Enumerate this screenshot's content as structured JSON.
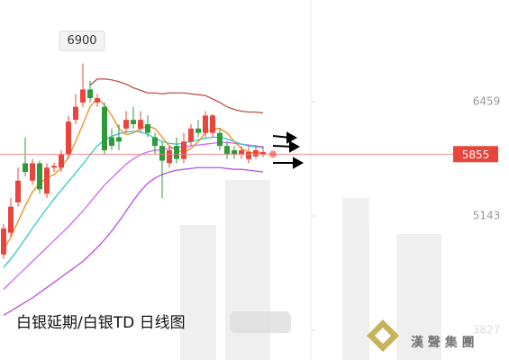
{
  "chart_data": {
    "type": "candlestick",
    "title": "白银延期/白银TD 日线图",
    "watermark": "漢 聲 集 團",
    "high_label": 6900,
    "last_price": 5855,
    "ylim": [
      3485,
      7630
    ],
    "yticks": [
      6459,
      5143,
      3827
    ],
    "up_color": "#e8453c",
    "down_color": "#2f9a3a",
    "open": [
      4700,
      4950,
      5300,
      5750,
      5550,
      5750,
      5400,
      5700,
      5700,
      5850,
      6250,
      6450,
      6600,
      6450,
      6400,
      6050,
      6050,
      6150,
      6250,
      6150,
      6200,
      6050,
      5950,
      5750,
      5950,
      5800,
      6000,
      6150,
      6100,
      6100,
      6100,
      5950,
      5900,
      5850,
      5800,
      5830,
      5850
    ],
    "close": [
      5000,
      5250,
      5550,
      5650,
      5750,
      5450,
      5700,
      5720,
      5850,
      6230,
      6400,
      6600,
      6500,
      6500,
      5900,
      5950,
      6000,
      6250,
      6200,
      6250,
      6100,
      5950,
      5780,
      5900,
      5800,
      6000,
      6150,
      6100,
      6300,
      6300,
      5950,
      5850,
      5850,
      5900,
      5880,
      5900,
      5880
    ],
    "high": [
      5050,
      5350,
      5700,
      6050,
      5800,
      5780,
      5750,
      5760,
      5900,
      6300,
      6550,
      6900,
      6700,
      6550,
      6450,
      6150,
      6200,
      6350,
      6400,
      6350,
      6300,
      6100,
      6000,
      5950,
      6050,
      6100,
      6200,
      6250,
      6350,
      6320,
      6150,
      6000,
      5950,
      5950,
      5950,
      5960,
      5950
    ],
    "low": [
      4650,
      4900,
      5250,
      5600,
      5500,
      5400,
      5350,
      5650,
      5650,
      5800,
      6200,
      6400,
      6450,
      6400,
      5850,
      5900,
      5900,
      6100,
      6150,
      6100,
      6050,
      5850,
      5350,
      5700,
      5750,
      5750,
      5950,
      6050,
      6050,
      6050,
      5900,
      5800,
      5800,
      5800,
      5750,
      5800,
      5820
    ],
    "series": [
      {
        "color": "#c0504d",
        "values": [
          null,
          null,
          null,
          null,
          null,
          null,
          null,
          null,
          null,
          null,
          null,
          null,
          6650,
          6720,
          6720,
          6710,
          6690,
          6660,
          6620,
          6590,
          6560,
          6560,
          6550,
          6560,
          6560,
          6560,
          6550,
          6540,
          6530,
          6490,
          6450,
          6400,
          6370,
          6350,
          6340,
          6340,
          6330
        ]
      },
      {
        "color": "#b84fe0",
        "values": [
          4000,
          4050,
          4100,
          4150,
          4200,
          4260,
          4320,
          4380,
          4440,
          4500,
          4560,
          4620,
          4700,
          4780,
          4870,
          4970,
          5080,
          5200,
          5320,
          5430,
          5520,
          5580,
          5620,
          5650,
          5670,
          5680,
          5690,
          5700,
          5700,
          5700,
          5700,
          5690,
          5680,
          5680,
          5670,
          5660,
          5650
        ]
      },
      {
        "color": "#cc66ff",
        "values": [
          4300,
          4380,
          4460,
          4540,
          4620,
          4700,
          4780,
          4860,
          4940,
          5020,
          5110,
          5200,
          5300,
          5400,
          5500,
          5580,
          5660,
          5740,
          5800,
          5850,
          5880,
          5900,
          5910,
          5920,
          5930,
          5940,
          5950,
          5960,
          5970,
          5980,
          5990,
          5990,
          5980,
          5970,
          5960,
          5950,
          5940
        ]
      },
      {
        "color": "#33c6d0",
        "values": [
          4550,
          4650,
          4760,
          4880,
          5000,
          5120,
          5230,
          5340,
          5440,
          5540,
          5640,
          5740,
          5850,
          5950,
          6020,
          6060,
          6090,
          6110,
          6120,
          6110,
          6080,
          6040,
          6000,
          5980,
          5970,
          5980,
          6000,
          6020,
          6040,
          6050,
          6050,
          6030,
          6000,
          5970,
          5950,
          5940,
          5930
        ]
      },
      {
        "color": "#f08c1a",
        "values": [
          4750,
          4900,
          5080,
          5260,
          5420,
          5520,
          5580,
          5620,
          5700,
          5820,
          6000,
          6200,
          6400,
          6500,
          6420,
          6300,
          6150,
          6080,
          6100,
          6150,
          6180,
          6150,
          6050,
          5950,
          5900,
          5880,
          5920,
          6000,
          6100,
          6150,
          6150,
          6100,
          6000,
          5920,
          5880,
          5870,
          5870
        ]
      }
    ]
  }
}
